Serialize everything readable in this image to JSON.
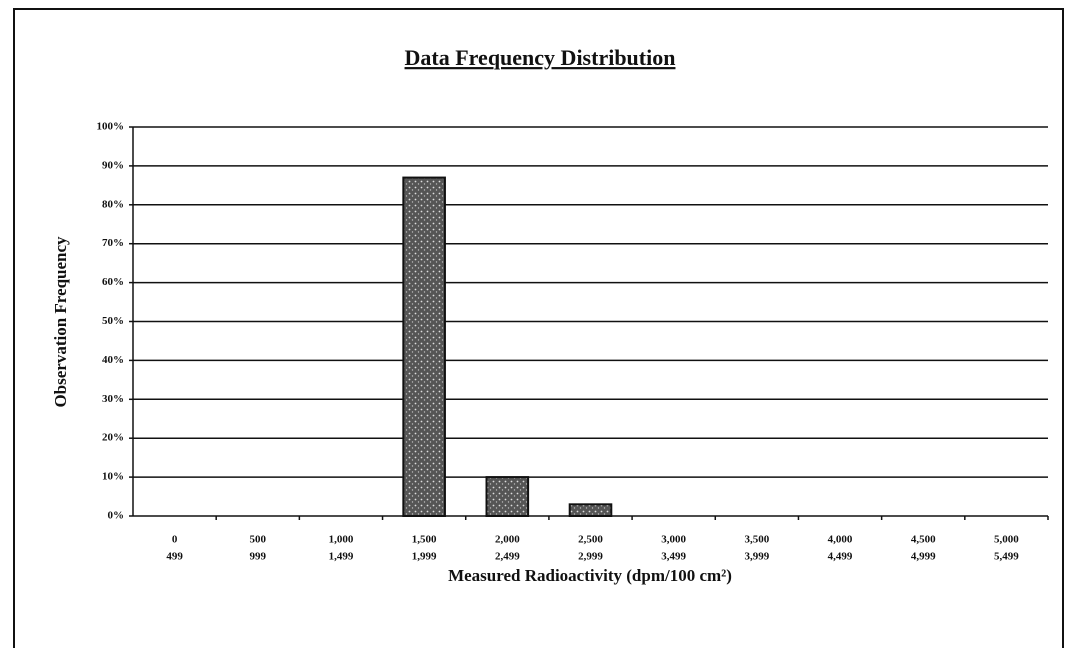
{
  "chart_data": {
    "type": "bar",
    "title": "Data Frequency Distribution",
    "x_label": "Measured Radioactivity (dpm/100 cm²)",
    "y_label": "Observation Frequency",
    "categories": [
      [
        "0",
        "499"
      ],
      [
        "500",
        "999"
      ],
      [
        "1,000",
        "1,499"
      ],
      [
        "1,500",
        "1,999"
      ],
      [
        "2,000",
        "2,499"
      ],
      [
        "2,500",
        "2,999"
      ],
      [
        "3,000",
        "3,499"
      ],
      [
        "3,500",
        "3,999"
      ],
      [
        "4,000",
        "4,499"
      ],
      [
        "4,500",
        "4,999"
      ],
      [
        "5,000",
        "5,499"
      ]
    ],
    "values": [
      0,
      0,
      0,
      87,
      10,
      3,
      0,
      0,
      0,
      0,
      0
    ],
    "color": "#7a7a7a",
    "ylim": [
      0,
      100
    ],
    "yticks": [
      {
        "value": 0,
        "label": "0%"
      },
      {
        "value": 10,
        "label": "10%"
      },
      {
        "value": 20,
        "label": "20%"
      },
      {
        "value": 30,
        "label": "30%"
      },
      {
        "value": 40,
        "label": "40%"
      },
      {
        "value": 50,
        "label": "50%"
      },
      {
        "value": 60,
        "label": "60%"
      },
      {
        "value": 70,
        "label": "70%"
      },
      {
        "value": 80,
        "label": "80%"
      },
      {
        "value": 90,
        "label": "90%"
      },
      {
        "value": 100,
        "label": "100%"
      }
    ],
    "grid": true
  }
}
